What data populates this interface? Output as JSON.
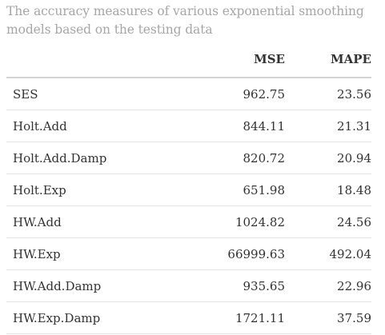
{
  "caption": "The accuracy measures of various exponential smoothing models based on the testing data",
  "table": {
    "headers": [
      "",
      "MSE",
      "MAPE"
    ],
    "rows": [
      {
        "model": "SES",
        "mse": "962.75",
        "mape": "23.56"
      },
      {
        "model": "Holt.Add",
        "mse": "844.11",
        "mape": "21.31"
      },
      {
        "model": "Holt.Add.Damp",
        "mse": "820.72",
        "mape": "20.94"
      },
      {
        "model": "Holt.Exp",
        "mse": "651.98",
        "mape": "18.48"
      },
      {
        "model": "HW.Add",
        "mse": "1024.82",
        "mape": "24.56"
      },
      {
        "model": "HW.Exp",
        "mse": "66999.63",
        "mape": "492.04"
      },
      {
        "model": "HW.Add.Damp",
        "mse": "935.65",
        "mape": "22.96"
      },
      {
        "model": "HW.Exp.Damp",
        "mse": "1721.11",
        "mape": "37.59"
      }
    ]
  }
}
